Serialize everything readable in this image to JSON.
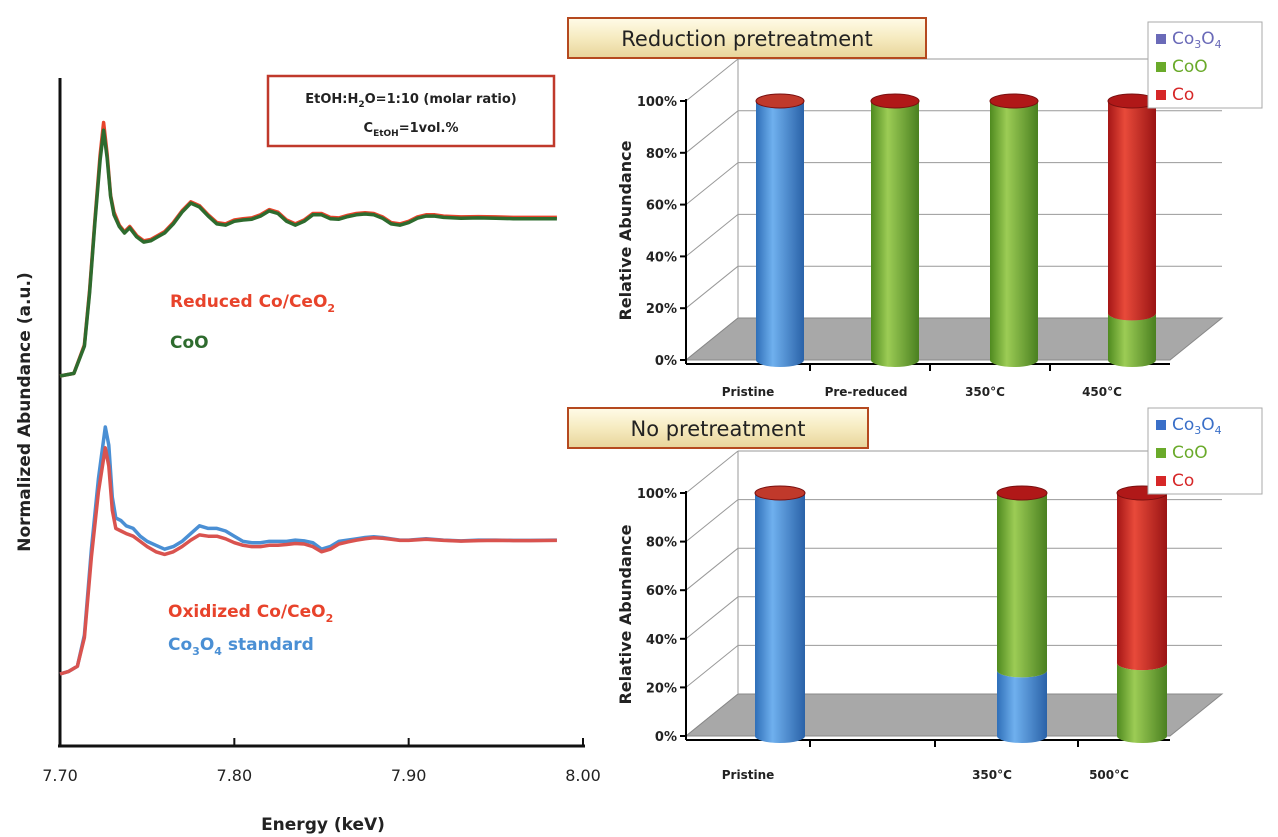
{
  "chart_data": [
    {
      "type": "line",
      "xlabel": "Energy (keV)",
      "ylabel": "Normalized Abundance (a.u.)",
      "xlim": [
        7.7,
        8.0
      ],
      "x_ticks": [
        "7.70",
        "7.80",
        "7.90",
        "8.00"
      ],
      "condition": {
        "line1": "EtOH:H₂O=1:10 (molar ratio)",
        "line2_main": "C",
        "line2_sub": "EtOH",
        "line2_rest": "=1vol.%"
      },
      "labels": {
        "reduced_main": "Reduced Co/CeO",
        "reduced_sub": "2",
        "coo": "CoO",
        "oxidized_main": "Oxidized Co/CeO",
        "oxidized_sub": "2",
        "co3o4_a": "Co",
        "co3o4_sub1": "3",
        "co3o4_b": "O",
        "co3o4_sub2": "4",
        "co3o4_c": " standard"
      },
      "series": [
        {
          "name": "Reduced Co/CeO2",
          "group": "upper",
          "color": "#e8432b",
          "x": [
            7.7,
            7.708,
            7.714,
            7.717,
            7.72,
            7.723,
            7.725,
            7.727,
            7.729,
            7.731,
            7.734,
            7.737,
            7.74,
            7.744,
            7.748,
            7.752,
            7.756,
            7.76,
            7.765,
            7.77,
            7.775,
            7.78,
            7.785,
            7.79,
            7.795,
            7.8,
            7.805,
            7.81,
            7.815,
            7.82,
            7.825,
            7.83,
            7.835,
            7.84,
            7.845,
            7.85,
            7.855,
            7.86,
            7.865,
            7.87,
            7.875,
            7.88,
            7.885,
            7.89,
            7.895,
            7.9,
            7.905,
            7.91,
            7.915,
            7.92,
            7.93,
            7.94,
            7.95,
            7.96,
            7.97,
            7.985
          ],
          "y": [
            0.0,
            0.01,
            0.12,
            0.33,
            0.6,
            0.85,
            0.975,
            0.855,
            0.695,
            0.63,
            0.58,
            0.555,
            0.575,
            0.54,
            0.52,
            0.525,
            0.54,
            0.555,
            0.59,
            0.635,
            0.67,
            0.655,
            0.62,
            0.59,
            0.585,
            0.6,
            0.605,
            0.608,
            0.62,
            0.64,
            0.63,
            0.6,
            0.585,
            0.6,
            0.625,
            0.625,
            0.61,
            0.608,
            0.618,
            0.625,
            0.628,
            0.625,
            0.612,
            0.59,
            0.585,
            0.595,
            0.612,
            0.62,
            0.62,
            0.615,
            0.612,
            0.613,
            0.612,
            0.61,
            0.61,
            0.61
          ]
        },
        {
          "name": "CoO",
          "group": "upper",
          "color": "#2e6b2e",
          "x": [
            7.7,
            7.708,
            7.714,
            7.717,
            7.72,
            7.723,
            7.725,
            7.727,
            7.729,
            7.731,
            7.734,
            7.737,
            7.74,
            7.744,
            7.748,
            7.752,
            7.756,
            7.76,
            7.765,
            7.77,
            7.775,
            7.78,
            7.785,
            7.79,
            7.795,
            7.8,
            7.805,
            7.81,
            7.815,
            7.82,
            7.825,
            7.83,
            7.835,
            7.84,
            7.845,
            7.85,
            7.855,
            7.86,
            7.865,
            7.87,
            7.875,
            7.88,
            7.885,
            7.89,
            7.895,
            7.9,
            7.905,
            7.91,
            7.915,
            7.92,
            7.93,
            7.94,
            7.95,
            7.96,
            7.97,
            7.985
          ],
          "y": [
            0.0,
            0.01,
            0.115,
            0.32,
            0.59,
            0.83,
            0.945,
            0.84,
            0.69,
            0.62,
            0.575,
            0.55,
            0.57,
            0.535,
            0.515,
            0.52,
            0.535,
            0.55,
            0.585,
            0.63,
            0.665,
            0.65,
            0.615,
            0.585,
            0.58,
            0.595,
            0.6,
            0.603,
            0.615,
            0.635,
            0.625,
            0.595,
            0.58,
            0.595,
            0.62,
            0.62,
            0.605,
            0.603,
            0.613,
            0.62,
            0.623,
            0.62,
            0.607,
            0.585,
            0.58,
            0.59,
            0.607,
            0.615,
            0.615,
            0.61,
            0.607,
            0.608,
            0.607,
            0.605,
            0.605,
            0.605
          ]
        },
        {
          "name": "Co3O4 standard",
          "group": "lower",
          "color": "#4a8fd4",
          "x": [
            7.7,
            7.705,
            7.71,
            7.714,
            7.718,
            7.722,
            7.726,
            7.728,
            7.73,
            7.732,
            7.735,
            7.738,
            7.742,
            7.746,
            7.75,
            7.755,
            7.76,
            7.765,
            7.77,
            7.775,
            7.78,
            7.785,
            7.79,
            7.795,
            7.8,
            7.805,
            7.81,
            7.815,
            7.82,
            7.825,
            7.83,
            7.835,
            7.84,
            7.845,
            7.85,
            7.855,
            7.86,
            7.865,
            7.87,
            7.875,
            7.88,
            7.885,
            7.89,
            7.895,
            7.9,
            7.91,
            7.92,
            7.93,
            7.94,
            7.95,
            7.96,
            7.97,
            7.985
          ],
          "y": [
            0.0,
            0.01,
            0.03,
            0.15,
            0.48,
            0.75,
            0.95,
            0.88,
            0.68,
            0.6,
            0.59,
            0.57,
            0.56,
            0.53,
            0.51,
            0.495,
            0.48,
            0.49,
            0.51,
            0.54,
            0.57,
            0.56,
            0.56,
            0.55,
            0.53,
            0.51,
            0.505,
            0.505,
            0.51,
            0.51,
            0.51,
            0.515,
            0.512,
            0.505,
            0.48,
            0.49,
            0.51,
            0.515,
            0.52,
            0.525,
            0.528,
            0.525,
            0.52,
            0.515,
            0.515,
            0.52,
            0.515,
            0.512,
            0.515,
            0.515,
            0.514,
            0.514,
            0.515
          ]
        },
        {
          "name": "Oxidized Co/CeO2",
          "group": "lower",
          "color": "#d9534f",
          "x": [
            7.7,
            7.705,
            7.71,
            7.714,
            7.718,
            7.722,
            7.726,
            7.728,
            7.73,
            7.732,
            7.735,
            7.738,
            7.742,
            7.746,
            7.75,
            7.755,
            7.76,
            7.765,
            7.77,
            7.775,
            7.78,
            7.785,
            7.79,
            7.795,
            7.8,
            7.805,
            7.81,
            7.815,
            7.82,
            7.825,
            7.83,
            7.835,
            7.84,
            7.845,
            7.85,
            7.855,
            7.86,
            7.865,
            7.87,
            7.875,
            7.88,
            7.885,
            7.89,
            7.895,
            7.9,
            7.91,
            7.92,
            7.93,
            7.94,
            7.95,
            7.96,
            7.97,
            7.985
          ],
          "y": [
            0.0,
            0.01,
            0.03,
            0.14,
            0.45,
            0.7,
            0.87,
            0.8,
            0.63,
            0.56,
            0.55,
            0.54,
            0.53,
            0.51,
            0.49,
            0.47,
            0.46,
            0.47,
            0.49,
            0.515,
            0.535,
            0.53,
            0.53,
            0.52,
            0.505,
            0.495,
            0.49,
            0.49,
            0.495,
            0.495,
            0.498,
            0.502,
            0.5,
            0.49,
            0.47,
            0.48,
            0.5,
            0.508,
            0.515,
            0.52,
            0.524,
            0.522,
            0.518,
            0.514,
            0.514,
            0.518,
            0.514,
            0.511,
            0.513,
            0.514,
            0.513,
            0.513,
            0.514
          ]
        }
      ]
    },
    {
      "type": "bar",
      "stacked": true,
      "title": "Reduction pretreatment",
      "ylabel": "Relative Abundance",
      "categories": [
        "Pristine",
        "Pre-reduced",
        "350°C",
        "450°C"
      ],
      "y_ticks": [
        "0%",
        "20%",
        "40%",
        "60%",
        "80%",
        "100%"
      ],
      "legend": [
        {
          "a": "Co",
          "s1": "3",
          "b": "O",
          "s2": "4",
          "color": "#6a6ab8"
        },
        {
          "a": "CoO",
          "s1": "",
          "b": "",
          "s2": "",
          "color": "#6aaa2a"
        },
        {
          "a": "Co",
          "s1": "",
          "b": "",
          "s2": "",
          "color": "#d62728"
        }
      ],
      "series": [
        {
          "name": "Co3O4",
          "color": "#4a8fd4",
          "values": [
            100,
            0,
            0,
            0
          ]
        },
        {
          "name": "CoO",
          "color": "#77b33a",
          "values": [
            0,
            100,
            100,
            18
          ]
        },
        {
          "name": "Co",
          "color": "#d62728",
          "values": [
            0,
            0,
            0,
            82
          ]
        }
      ]
    },
    {
      "type": "bar",
      "stacked": true,
      "title": "No pretreatment",
      "ylabel": "Relative Abundance",
      "categories": [
        "Pristine",
        "",
        "350°C",
        "500°C"
      ],
      "y_ticks": [
        "0%",
        "20%",
        "40%",
        "60%",
        "80%",
        "100%"
      ],
      "legend": [
        {
          "a": "Co",
          "s1": "3",
          "b": "O",
          "s2": "4",
          "color": "#3a6fc8"
        },
        {
          "a": "CoO",
          "s1": "",
          "b": "",
          "s2": "",
          "color": "#6aaa2a"
        },
        {
          "a": "Co",
          "s1": "",
          "b": "",
          "s2": "",
          "color": "#d62728"
        }
      ],
      "series": [
        {
          "name": "Co3O4",
          "color": "#4a8fd4",
          "values": [
            100,
            null,
            27,
            0
          ]
        },
        {
          "name": "CoO",
          "color": "#77b33a",
          "values": [
            0,
            null,
            73,
            30
          ]
        },
        {
          "name": "Co",
          "color": "#d62728",
          "values": [
            0,
            null,
            0,
            70
          ]
        }
      ]
    }
  ]
}
